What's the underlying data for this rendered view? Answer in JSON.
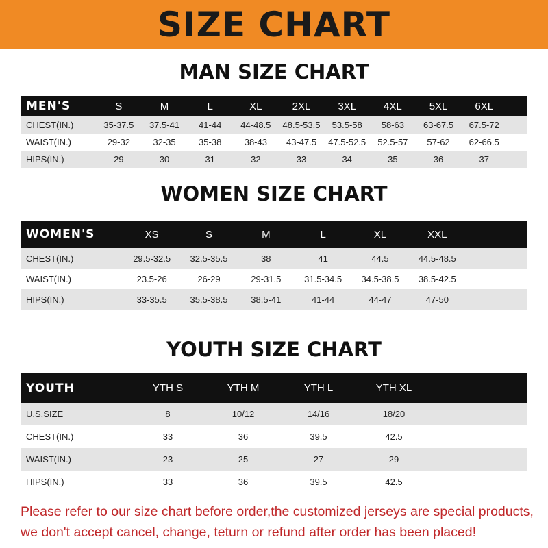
{
  "banner": "SIZE CHART",
  "tables": [
    {
      "title": "MAN SIZE CHART",
      "header": "MEN'S",
      "sizes": [
        "S",
        "M",
        "L",
        "XL",
        "2XL",
        "3XL",
        "4XL",
        "5XL",
        "6XL"
      ],
      "rows": [
        {
          "label": "CHEST(IN.)",
          "values": [
            "35-37.5",
            "37.5-41",
            "41-44",
            "44-48.5",
            "48.5-53.5",
            "53.5-58",
            "58-63",
            "63-67.5",
            "67.5-72"
          ]
        },
        {
          "label": "WAIST(IN.)",
          "values": [
            "29-32",
            "32-35",
            "35-38",
            "38-43",
            "43-47.5",
            "47.5-52.5",
            "52.5-57",
            "57-62",
            "62-66.5"
          ]
        },
        {
          "label": "HIPS(IN.)",
          "values": [
            "29",
            "30",
            "31",
            "32",
            "33",
            "34",
            "35",
            "36",
            "37"
          ]
        }
      ]
    },
    {
      "title": "WOMEN SIZE CHART",
      "header": "WOMEN'S",
      "sizes": [
        "XS",
        "S",
        "M",
        "L",
        "XL",
        "XXL"
      ],
      "rows": [
        {
          "label": "CHEST(IN.)",
          "values": [
            "29.5-32.5",
            "32.5-35.5",
            "38",
            "41",
            "44.5",
            "44.5-48.5"
          ]
        },
        {
          "label": "WAIST(IN.)",
          "values": [
            "23.5-26",
            "26-29",
            "29-31.5",
            "31.5-34.5",
            "34.5-38.5",
            "38.5-42.5"
          ]
        },
        {
          "label": "HIPS(IN.)",
          "values": [
            "33-35.5",
            "35.5-38.5",
            "38.5-41",
            "41-44",
            "44-47",
            "47-50"
          ]
        }
      ]
    },
    {
      "title": "YOUTH SIZE CHART",
      "header": "YOUTH",
      "sizes": [
        "YTH S",
        "YTH M",
        "YTH L",
        "YTH XL"
      ],
      "rows": [
        {
          "label": "U.S.SIZE",
          "values": [
            "8",
            "10/12",
            "14/16",
            "18/20"
          ]
        },
        {
          "label": "CHEST(IN.)",
          "values": [
            "33",
            "36",
            "39.5",
            "42.5"
          ]
        },
        {
          "label": "WAIST(IN.)",
          "values": [
            "23",
            "25",
            "27",
            "29"
          ]
        },
        {
          "label": "HIPS(IN.)",
          "values": [
            "33",
            "36",
            "39.5",
            "42.5"
          ]
        }
      ]
    }
  ],
  "footer": {
    "line1": "Please refer to our size chart before order,the customized jerseys are special products,",
    "line2": "we don't accept cancel, change, teturn or refund after order has been placed!"
  },
  "colors": {
    "banner": "#f08a24",
    "header_row": "#111111",
    "stripe": "#e4e4e4",
    "footer_text": "#c0282a"
  }
}
